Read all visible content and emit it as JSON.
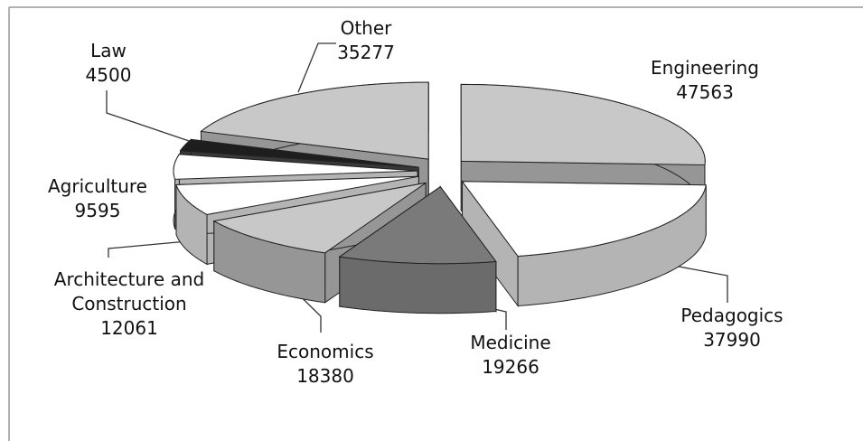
{
  "chart_data": {
    "type": "pie3d",
    "categories": [
      "Engineering",
      "Pedagogics",
      "Medicine",
      "Economics",
      "Architecture and Construction",
      "Agriculture",
      "Law",
      "Other"
    ],
    "values": [
      47563,
      37990,
      19266,
      18380,
      12061,
      9595,
      4500,
      35277
    ],
    "colors": [
      "#c8c8c8",
      "#ffffff",
      "#7a7a7a",
      "#c8c8c8",
      "#ffffff",
      "#ffffff",
      "#1e1e1e",
      "#c8c8c8"
    ]
  }
}
